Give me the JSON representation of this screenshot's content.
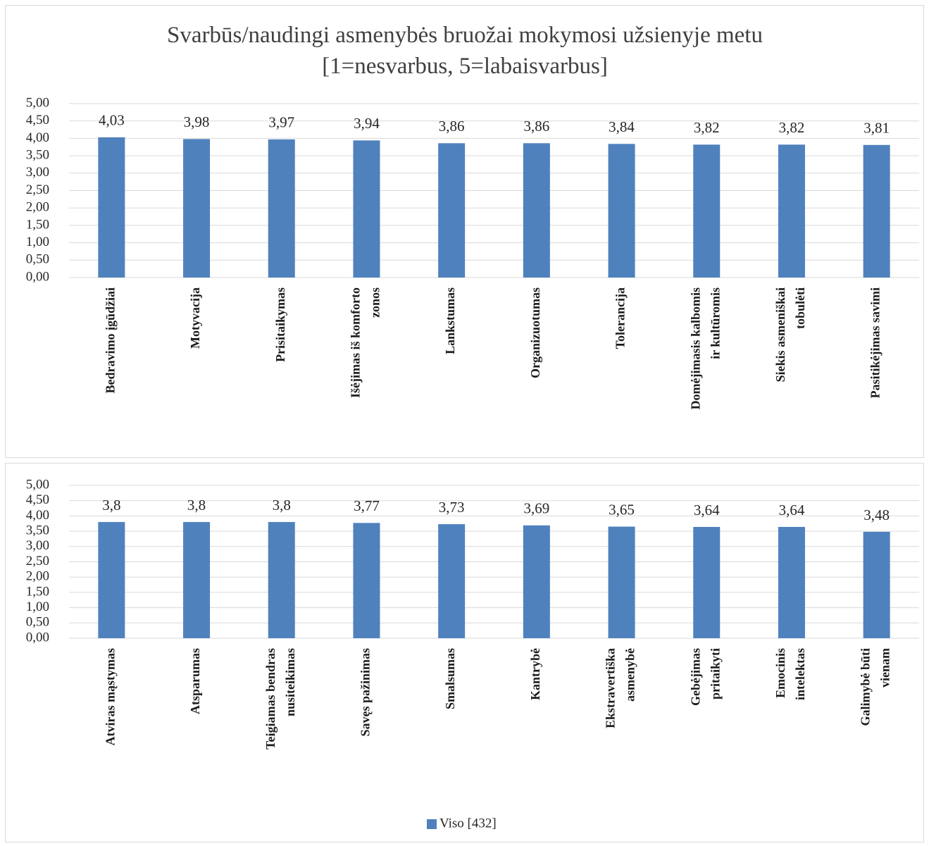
{
  "chart_data": [
    {
      "type": "bar",
      "title": "Svarbūs/naudingi asmenybės bruožai mokymosi užsienyje metu [1=nesvarbus, 5=labaisvarbus]",
      "categories": [
        "Bedravimo įgūdžiai",
        "Motyvacija",
        "Prisitaikymas",
        "Išėjimas iš komforto zonos",
        "Lankstumas",
        "Organizuotumas",
        "Tolerancija",
        "Domėjimasis kalbomis ir kultūromis",
        "Siekis asmeniškai tobulėti",
        "Pasitikėjimas savimi"
      ],
      "series": [
        {
          "color": "#4f81bd",
          "values": [
            4.03,
            3.98,
            3.97,
            3.94,
            3.86,
            3.86,
            3.84,
            3.82,
            3.82,
            3.81
          ],
          "value_labels": [
            "4,03",
            "3,98",
            "3,97",
            "3,94",
            "3,86",
            "3,86",
            "3,84",
            "3,82",
            "3,82",
            "3,81"
          ]
        }
      ],
      "ylim": [
        0,
        5
      ],
      "yticks": [
        {
          "value": 0,
          "label": "0,00"
        },
        {
          "value": 0.5,
          "label": "0,50"
        },
        {
          "value": 1,
          "label": "1,00"
        },
        {
          "value": 1.5,
          "label": "1,50"
        },
        {
          "value": 2,
          "label": "2,00"
        },
        {
          "value": 2.5,
          "label": "2,50"
        },
        {
          "value": 3,
          "label": "3,00"
        },
        {
          "value": 3.5,
          "label": "3,50"
        },
        {
          "value": 4,
          "label": "4,00"
        },
        {
          "value": 4.5,
          "label": "4,50"
        },
        {
          "value": 5,
          "label": "5,00"
        }
      ],
      "grid": true
    },
    {
      "type": "bar",
      "categories": [
        "Atviras mąstymas",
        "Atsparumas",
        "Teigiamas bendras nusiteikimas",
        "Savęs pažinimas",
        "Smalsumas",
        "Kantrybė",
        "Ekstravertiška asmenybė",
        "Gebėjimas pritaikyti",
        "Emocinis intelektas",
        "Galimybė būti vienam"
      ],
      "series": [
        {
          "name": "Viso [432]",
          "color": "#4f81bd",
          "values": [
            3.8,
            3.8,
            3.8,
            3.77,
            3.73,
            3.69,
            3.65,
            3.64,
            3.64,
            3.48
          ],
          "value_labels": [
            "3,8",
            "3,8",
            "3,8",
            "3,77",
            "3,73",
            "3,69",
            "3,65",
            "3,64",
            "3,64",
            "3,48"
          ]
        }
      ],
      "ylim": [
        0,
        5
      ],
      "yticks": [
        {
          "value": 0,
          "label": "0,00"
        },
        {
          "value": 0.5,
          "label": "0,50"
        },
        {
          "value": 1,
          "label": "1,00"
        },
        {
          "value": 1.5,
          "label": "1,50"
        },
        {
          "value": 2,
          "label": "2,00"
        },
        {
          "value": 2.5,
          "label": "2,50"
        },
        {
          "value": 3,
          "label": "3,00"
        },
        {
          "value": 3.5,
          "label": "3,50"
        },
        {
          "value": 4,
          "label": "4,00"
        },
        {
          "value": 4.5,
          "label": "4,50"
        },
        {
          "value": 5,
          "label": "5,00"
        }
      ],
      "grid": true,
      "legend": "bottom"
    }
  ]
}
